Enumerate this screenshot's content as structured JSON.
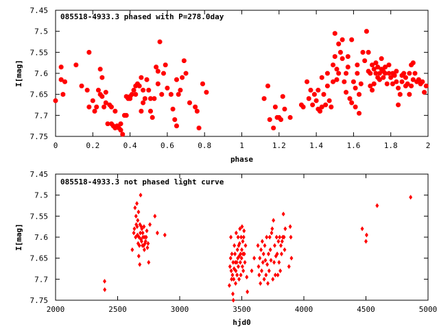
{
  "chart_data": [
    {
      "type": "scatter",
      "title": "085518-4933.3 phased with P=278.0day",
      "xlabel": "phase",
      "ylabel": "I[mag]",
      "xlim": [
        0,
        2
      ],
      "ylim": [
        7.75,
        7.45
      ],
      "y_inverted": true,
      "grid": false,
      "marker": "filled-octagon",
      "color": "#ff0000",
      "xticks": [
        "0",
        "0.2",
        "0.4",
        "0.6",
        "0.8",
        "1",
        "1.2",
        "1.4",
        "1.6",
        "1.8",
        "2"
      ],
      "yticks": [
        "7.45",
        "7.5",
        "7.55",
        "7.6",
        "7.65",
        "7.7",
        "7.75"
      ],
      "points": [
        [
          0.0,
          7.665
        ],
        [
          0.03,
          7.585
        ],
        [
          0.03,
          7.615
        ],
        [
          0.04,
          7.65
        ],
        [
          0.05,
          7.62
        ],
        [
          0.11,
          7.58
        ],
        [
          0.14,
          7.63
        ],
        [
          0.17,
          7.64
        ],
        [
          0.18,
          7.55
        ],
        [
          0.18,
          7.68
        ],
        [
          0.2,
          7.665
        ],
        [
          0.21,
          7.69
        ],
        [
          0.22,
          7.68
        ],
        [
          0.23,
          7.64
        ],
        [
          0.24,
          7.59
        ],
        [
          0.24,
          7.65
        ],
        [
          0.25,
          7.61
        ],
        [
          0.25,
          7.655
        ],
        [
          0.26,
          7.68
        ],
        [
          0.27,
          7.645
        ],
        [
          0.27,
          7.67
        ],
        [
          0.28,
          7.72
        ],
        [
          0.29,
          7.675
        ],
        [
          0.3,
          7.68
        ],
        [
          0.3,
          7.72
        ],
        [
          0.31,
          7.725
        ],
        [
          0.32,
          7.69
        ],
        [
          0.32,
          7.73
        ],
        [
          0.33,
          7.725
        ],
        [
          0.34,
          7.73
        ],
        [
          0.35,
          7.735
        ],
        [
          0.35,
          7.72
        ],
        [
          0.36,
          7.745
        ],
        [
          0.37,
          7.7
        ],
        [
          0.38,
          7.7
        ],
        [
          0.38,
          7.655
        ],
        [
          0.39,
          7.66
        ],
        [
          0.4,
          7.66
        ],
        [
          0.4,
          7.655
        ],
        [
          0.41,
          7.65
        ],
        [
          0.42,
          7.64
        ],
        [
          0.43,
          7.65
        ],
        [
          0.43,
          7.63
        ],
        [
          0.44,
          7.625
        ],
        [
          0.45,
          7.63
        ],
        [
          0.46,
          7.69
        ],
        [
          0.46,
          7.61
        ],
        [
          0.47,
          7.64
        ],
        [
          0.47,
          7.67
        ],
        [
          0.48,
          7.66
        ],
        [
          0.49,
          7.615
        ],
        [
          0.5,
          7.64
        ],
        [
          0.51,
          7.66
        ],
        [
          0.51,
          7.69
        ],
        [
          0.52,
          7.705
        ],
        [
          0.53,
          7.66
        ],
        [
          0.54,
          7.585
        ],
        [
          0.55,
          7.595
        ],
        [
          0.55,
          7.625
        ],
        [
          0.56,
          7.525
        ],
        [
          0.57,
          7.65
        ],
        [
          0.58,
          7.6
        ],
        [
          0.59,
          7.58
        ],
        [
          0.6,
          7.635
        ],
        [
          0.62,
          7.65
        ],
        [
          0.63,
          7.685
        ],
        [
          0.64,
          7.71
        ],
        [
          0.65,
          7.725
        ],
        [
          0.65,
          7.615
        ],
        [
          0.66,
          7.65
        ],
        [
          0.67,
          7.64
        ],
        [
          0.68,
          7.61
        ],
        [
          0.69,
          7.57
        ],
        [
          0.7,
          7.6
        ],
        [
          0.72,
          7.67
        ],
        [
          0.75,
          7.68
        ],
        [
          0.76,
          7.69
        ],
        [
          0.77,
          7.73
        ],
        [
          0.79,
          7.625
        ],
        [
          0.81,
          7.645
        ],
        [
          1.12,
          7.66
        ],
        [
          1.14,
          7.63
        ],
        [
          1.15,
          7.71
        ],
        [
          1.17,
          7.73
        ],
        [
          1.18,
          7.68
        ],
        [
          1.19,
          7.705
        ],
        [
          1.2,
          7.705
        ],
        [
          1.21,
          7.71
        ],
        [
          1.22,
          7.655
        ],
        [
          1.23,
          7.685
        ],
        [
          1.26,
          7.705
        ],
        [
          1.32,
          7.675
        ],
        [
          1.33,
          7.68
        ],
        [
          1.35,
          7.62
        ],
        [
          1.36,
          7.66
        ],
        [
          1.37,
          7.64
        ],
        [
          1.38,
          7.675
        ],
        [
          1.39,
          7.65
        ],
        [
          1.4,
          7.665
        ],
        [
          1.41,
          7.64
        ],
        [
          1.41,
          7.685
        ],
        [
          1.42,
          7.69
        ],
        [
          1.43,
          7.68
        ],
        [
          1.43,
          7.61
        ],
        [
          1.44,
          7.65
        ],
        [
          1.45,
          7.675
        ],
        [
          1.46,
          7.63
        ],
        [
          1.46,
          7.6
        ],
        [
          1.47,
          7.665
        ],
        [
          1.48,
          7.68
        ],
        [
          1.49,
          7.62
        ],
        [
          1.49,
          7.58
        ],
        [
          1.5,
          7.505
        ],
        [
          1.5,
          7.56
        ],
        [
          1.51,
          7.59
        ],
        [
          1.51,
          7.615
        ],
        [
          1.52,
          7.6
        ],
        [
          1.52,
          7.53
        ],
        [
          1.53,
          7.55
        ],
        [
          1.54,
          7.565
        ],
        [
          1.54,
          7.52
        ],
        [
          1.55,
          7.62
        ],
        [
          1.56,
          7.645
        ],
        [
          1.56,
          7.6
        ],
        [
          1.57,
          7.585
        ],
        [
          1.57,
          7.56
        ],
        [
          1.58,
          7.66
        ],
        [
          1.59,
          7.67
        ],
        [
          1.59,
          7.52
        ],
        [
          1.6,
          7.62
        ],
        [
          1.61,
          7.68
        ],
        [
          1.61,
          7.635
        ],
        [
          1.62,
          7.58
        ],
        [
          1.62,
          7.6
        ],
        [
          1.63,
          7.65
        ],
        [
          1.63,
          7.695
        ],
        [
          1.64,
          7.625
        ],
        [
          1.65,
          7.55
        ],
        [
          1.66,
          7.57
        ],
        [
          1.67,
          7.5
        ],
        [
          1.68,
          7.595
        ],
        [
          1.68,
          7.55
        ],
        [
          1.69,
          7.63
        ],
        [
          1.69,
          7.6
        ],
        [
          1.7,
          7.58
        ],
        [
          1.7,
          7.64
        ],
        [
          1.71,
          7.59
        ],
        [
          1.71,
          7.625
        ],
        [
          1.72,
          7.6
        ],
        [
          1.72,
          7.575
        ],
        [
          1.73,
          7.61
        ],
        [
          1.73,
          7.585
        ],
        [
          1.74,
          7.6
        ],
        [
          1.74,
          7.615
        ],
        [
          1.75,
          7.59
        ],
        [
          1.75,
          7.565
        ],
        [
          1.76,
          7.61
        ],
        [
          1.76,
          7.595
        ],
        [
          1.77,
          7.6
        ],
        [
          1.77,
          7.585
        ],
        [
          1.78,
          7.625
        ],
        [
          1.79,
          7.6
        ],
        [
          1.79,
          7.58
        ],
        [
          1.8,
          7.61
        ],
        [
          1.81,
          7.6
        ],
        [
          1.81,
          7.625
        ],
        [
          1.82,
          7.605
        ],
        [
          1.83,
          7.62
        ],
        [
          1.83,
          7.595
        ],
        [
          1.84,
          7.635
        ],
        [
          1.84,
          7.675
        ],
        [
          1.85,
          7.65
        ],
        [
          1.86,
          7.62
        ],
        [
          1.86,
          7.605
        ],
        [
          1.87,
          7.6
        ],
        [
          1.88,
          7.61
        ],
        [
          1.88,
          7.63
        ],
        [
          1.89,
          7.625
        ],
        [
          1.9,
          7.65
        ],
        [
          1.9,
          7.6
        ],
        [
          1.91,
          7.63
        ],
        [
          1.91,
          7.58
        ],
        [
          1.92,
          7.615
        ],
        [
          1.92,
          7.575
        ],
        [
          1.93,
          7.6
        ],
        [
          1.94,
          7.62
        ],
        [
          1.95,
          7.615
        ],
        [
          1.96,
          7.625
        ],
        [
          1.97,
          7.62
        ],
        [
          1.98,
          7.645
        ],
        [
          1.99,
          7.63
        ]
      ]
    },
    {
      "type": "scatter",
      "title": "085518-4933.3 not phased light curve",
      "xlabel": "hjd0",
      "ylabel": "I[mag]",
      "xlim": [
        2000,
        5000
      ],
      "ylim": [
        7.75,
        7.45
      ],
      "y_inverted": true,
      "grid": false,
      "marker": "diamond",
      "color": "#ff0000",
      "xticks": [
        "2000",
        "2500",
        "3000",
        "3500",
        "4000",
        "4500",
        "5000"
      ],
      "yticks": [
        "7.45",
        "7.5",
        "7.55",
        "7.6",
        "7.65",
        "7.7",
        "7.75"
      ],
      "points": [
        [
          2395,
          7.705
        ],
        [
          2396,
          7.725
        ],
        [
          2618,
          7.63
        ],
        [
          2630,
          7.59
        ],
        [
          2635,
          7.58
        ],
        [
          2640,
          7.53
        ],
        [
          2645,
          7.6
        ],
        [
          2648,
          7.55
        ],
        [
          2650,
          7.57
        ],
        [
          2655,
          7.52
        ],
        [
          2657,
          7.575
        ],
        [
          2660,
          7.595
        ],
        [
          2662,
          7.56
        ],
        [
          2665,
          7.615
        ],
        [
          2668,
          7.54
        ],
        [
          2670,
          7.645
        ],
        [
          2672,
          7.6
        ],
        [
          2675,
          7.62
        ],
        [
          2678,
          7.665
        ],
        [
          2680,
          7.57
        ],
        [
          2683,
          7.59
        ],
        [
          2685,
          7.5
        ],
        [
          2688,
          7.605
        ],
        [
          2690,
          7.575
        ],
        [
          2693,
          7.61
        ],
        [
          2695,
          7.58
        ],
        [
          2700,
          7.62
        ],
        [
          2702,
          7.59
        ],
        [
          2705,
          7.6
        ],
        [
          2710,
          7.62
        ],
        [
          2712,
          7.575
        ],
        [
          2715,
          7.63
        ],
        [
          2718,
          7.6
        ],
        [
          2720,
          7.615
        ],
        [
          2725,
          7.61
        ],
        [
          2730,
          7.6
        ],
        [
          2735,
          7.585
        ],
        [
          2740,
          7.625
        ],
        [
          2745,
          7.615
        ],
        [
          2750,
          7.66
        ],
        [
          2760,
          7.57
        ],
        [
          2800,
          7.55
        ],
        [
          2820,
          7.59
        ],
        [
          2880,
          7.595
        ],
        [
          3400,
          7.715
        ],
        [
          3405,
          7.67
        ],
        [
          3410,
          7.65
        ],
        [
          3412,
          7.6
        ],
        [
          3415,
          7.68
        ],
        [
          3418,
          7.7
        ],
        [
          3420,
          7.64
        ],
        [
          3425,
          7.69
        ],
        [
          3428,
          7.735
        ],
        [
          3430,
          7.66
        ],
        [
          3432,
          7.75
        ],
        [
          3435,
          7.7
        ],
        [
          3438,
          7.675
        ],
        [
          3440,
          7.62
        ],
        [
          3445,
          7.64
        ],
        [
          3448,
          7.66
        ],
        [
          3450,
          7.71
        ],
        [
          3452,
          7.68
        ],
        [
          3455,
          7.59
        ],
        [
          3460,
          7.66
        ],
        [
          3462,
          7.69
        ],
        [
          3465,
          7.63
        ],
        [
          3468,
          7.65
        ],
        [
          3470,
          7.6
        ],
        [
          3472,
          7.67
        ],
        [
          3475,
          7.62
        ],
        [
          3478,
          7.7
        ],
        [
          3480,
          7.645
        ],
        [
          3482,
          7.615
        ],
        [
          3485,
          7.58
        ],
        [
          3488,
          7.66
        ],
        [
          3490,
          7.64
        ],
        [
          3492,
          7.69
        ],
        [
          3495,
          7.6
        ],
        [
          3498,
          7.65
        ],
        [
          3500,
          7.63
        ],
        [
          3502,
          7.575
        ],
        [
          3505,
          7.67
        ],
        [
          3508,
          7.61
        ],
        [
          3510,
          7.64
        ],
        [
          3512,
          7.68
        ],
        [
          3515,
          7.6
        ],
        [
          3518,
          7.585
        ],
        [
          3520,
          7.64
        ],
        [
          3525,
          7.66
        ],
        [
          3530,
          7.62
        ],
        [
          3540,
          7.695
        ],
        [
          3545,
          7.73
        ],
        [
          3580,
          7.68
        ],
        [
          3600,
          7.65
        ],
        [
          3630,
          7.62
        ],
        [
          3635,
          7.67
        ],
        [
          3640,
          7.69
        ],
        [
          3645,
          7.65
        ],
        [
          3650,
          7.71
        ],
        [
          3655,
          7.63
        ],
        [
          3660,
          7.68
        ],
        [
          3665,
          7.61
        ],
        [
          3670,
          7.66
        ],
        [
          3675,
          7.64
        ],
        [
          3680,
          7.7
        ],
        [
          3685,
          7.62
        ],
        [
          3690,
          7.655
        ],
        [
          3695,
          7.69
        ],
        [
          3700,
          7.6
        ],
        [
          3705,
          7.665
        ],
        [
          3710,
          7.71
        ],
        [
          3715,
          7.64
        ],
        [
          3720,
          7.68
        ],
        [
          3725,
          7.6
        ],
        [
          3730,
          7.63
        ],
        [
          3735,
          7.655
        ],
        [
          3740,
          7.59
        ],
        [
          3745,
          7.58
        ],
        [
          3750,
          7.7
        ],
        [
          3755,
          7.56
        ],
        [
          3760,
          7.66
        ],
        [
          3765,
          7.62
        ],
        [
          3770,
          7.69
        ],
        [
          3775,
          7.645
        ],
        [
          3780,
          7.6
        ],
        [
          3785,
          7.64
        ],
        [
          3790,
          7.69
        ],
        [
          3795,
          7.61
        ],
        [
          3800,
          7.66
        ],
        [
          3805,
          7.6
        ],
        [
          3810,
          7.68
        ],
        [
          3815,
          7.62
        ],
        [
          3820,
          7.64
        ],
        [
          3825,
          7.61
        ],
        [
          3830,
          7.6
        ],
        [
          3835,
          7.545
        ],
        [
          3840,
          7.6
        ],
        [
          3845,
          7.63
        ],
        [
          3850,
          7.58
        ],
        [
          3880,
          7.67
        ],
        [
          3890,
          7.575
        ],
        [
          3895,
          7.6
        ],
        [
          3900,
          7.65
        ],
        [
          4470,
          7.58
        ],
        [
          4500,
          7.61
        ],
        [
          4505,
          7.595
        ],
        [
          4590,
          7.525
        ],
        [
          4860,
          7.505
        ]
      ]
    }
  ]
}
